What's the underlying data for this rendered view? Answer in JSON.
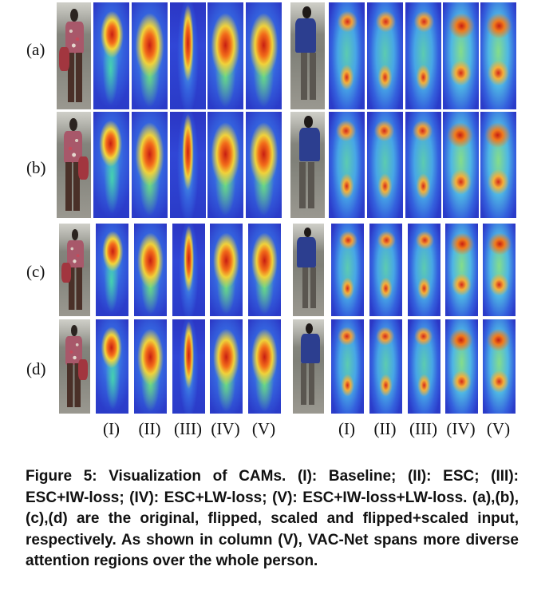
{
  "figure": {
    "row_labels": [
      "(a)",
      "(b)",
      "(c)",
      "(d)"
    ],
    "column_labels": [
      "(I)",
      "(II)",
      "(III)",
      "(IV)",
      "(V)"
    ],
    "groups": [
      {
        "subject": "person-with-floral-shirt-and-bag",
        "row_tops": [
          3,
          140,
          280,
          400
        ],
        "row_heights": [
          134,
          133,
          116,
          118
        ],
        "col_x": [
          71,
          117,
          165,
          213,
          260,
          308
        ],
        "col_w": [
          43,
          45,
          45,
          45,
          45,
          45
        ]
      },
      {
        "subject": "person-in-blue-shirt",
        "row_tops": [
          3,
          140,
          280,
          400
        ],
        "row_heights": [
          134,
          133,
          116,
          118
        ],
        "col_x": [
          364,
          412,
          460,
          508,
          555,
          602
        ],
        "col_w": [
          43,
          45,
          45,
          45,
          45,
          45
        ]
      }
    ]
  },
  "caption": {
    "text": "Figure 5: Visualization of CAMs. (I): Baseline; (II): ESC; (III): ESC+IW-loss; (IV): ESC+LW-loss; (V): ESC+IW-loss+LW-loss. (a),(b),(c),(d) are the original, flipped, scaled and flipped+scaled input, respectively. As shown in column (V), VAC-Net spans more diverse attention regions over the whole person."
  }
}
